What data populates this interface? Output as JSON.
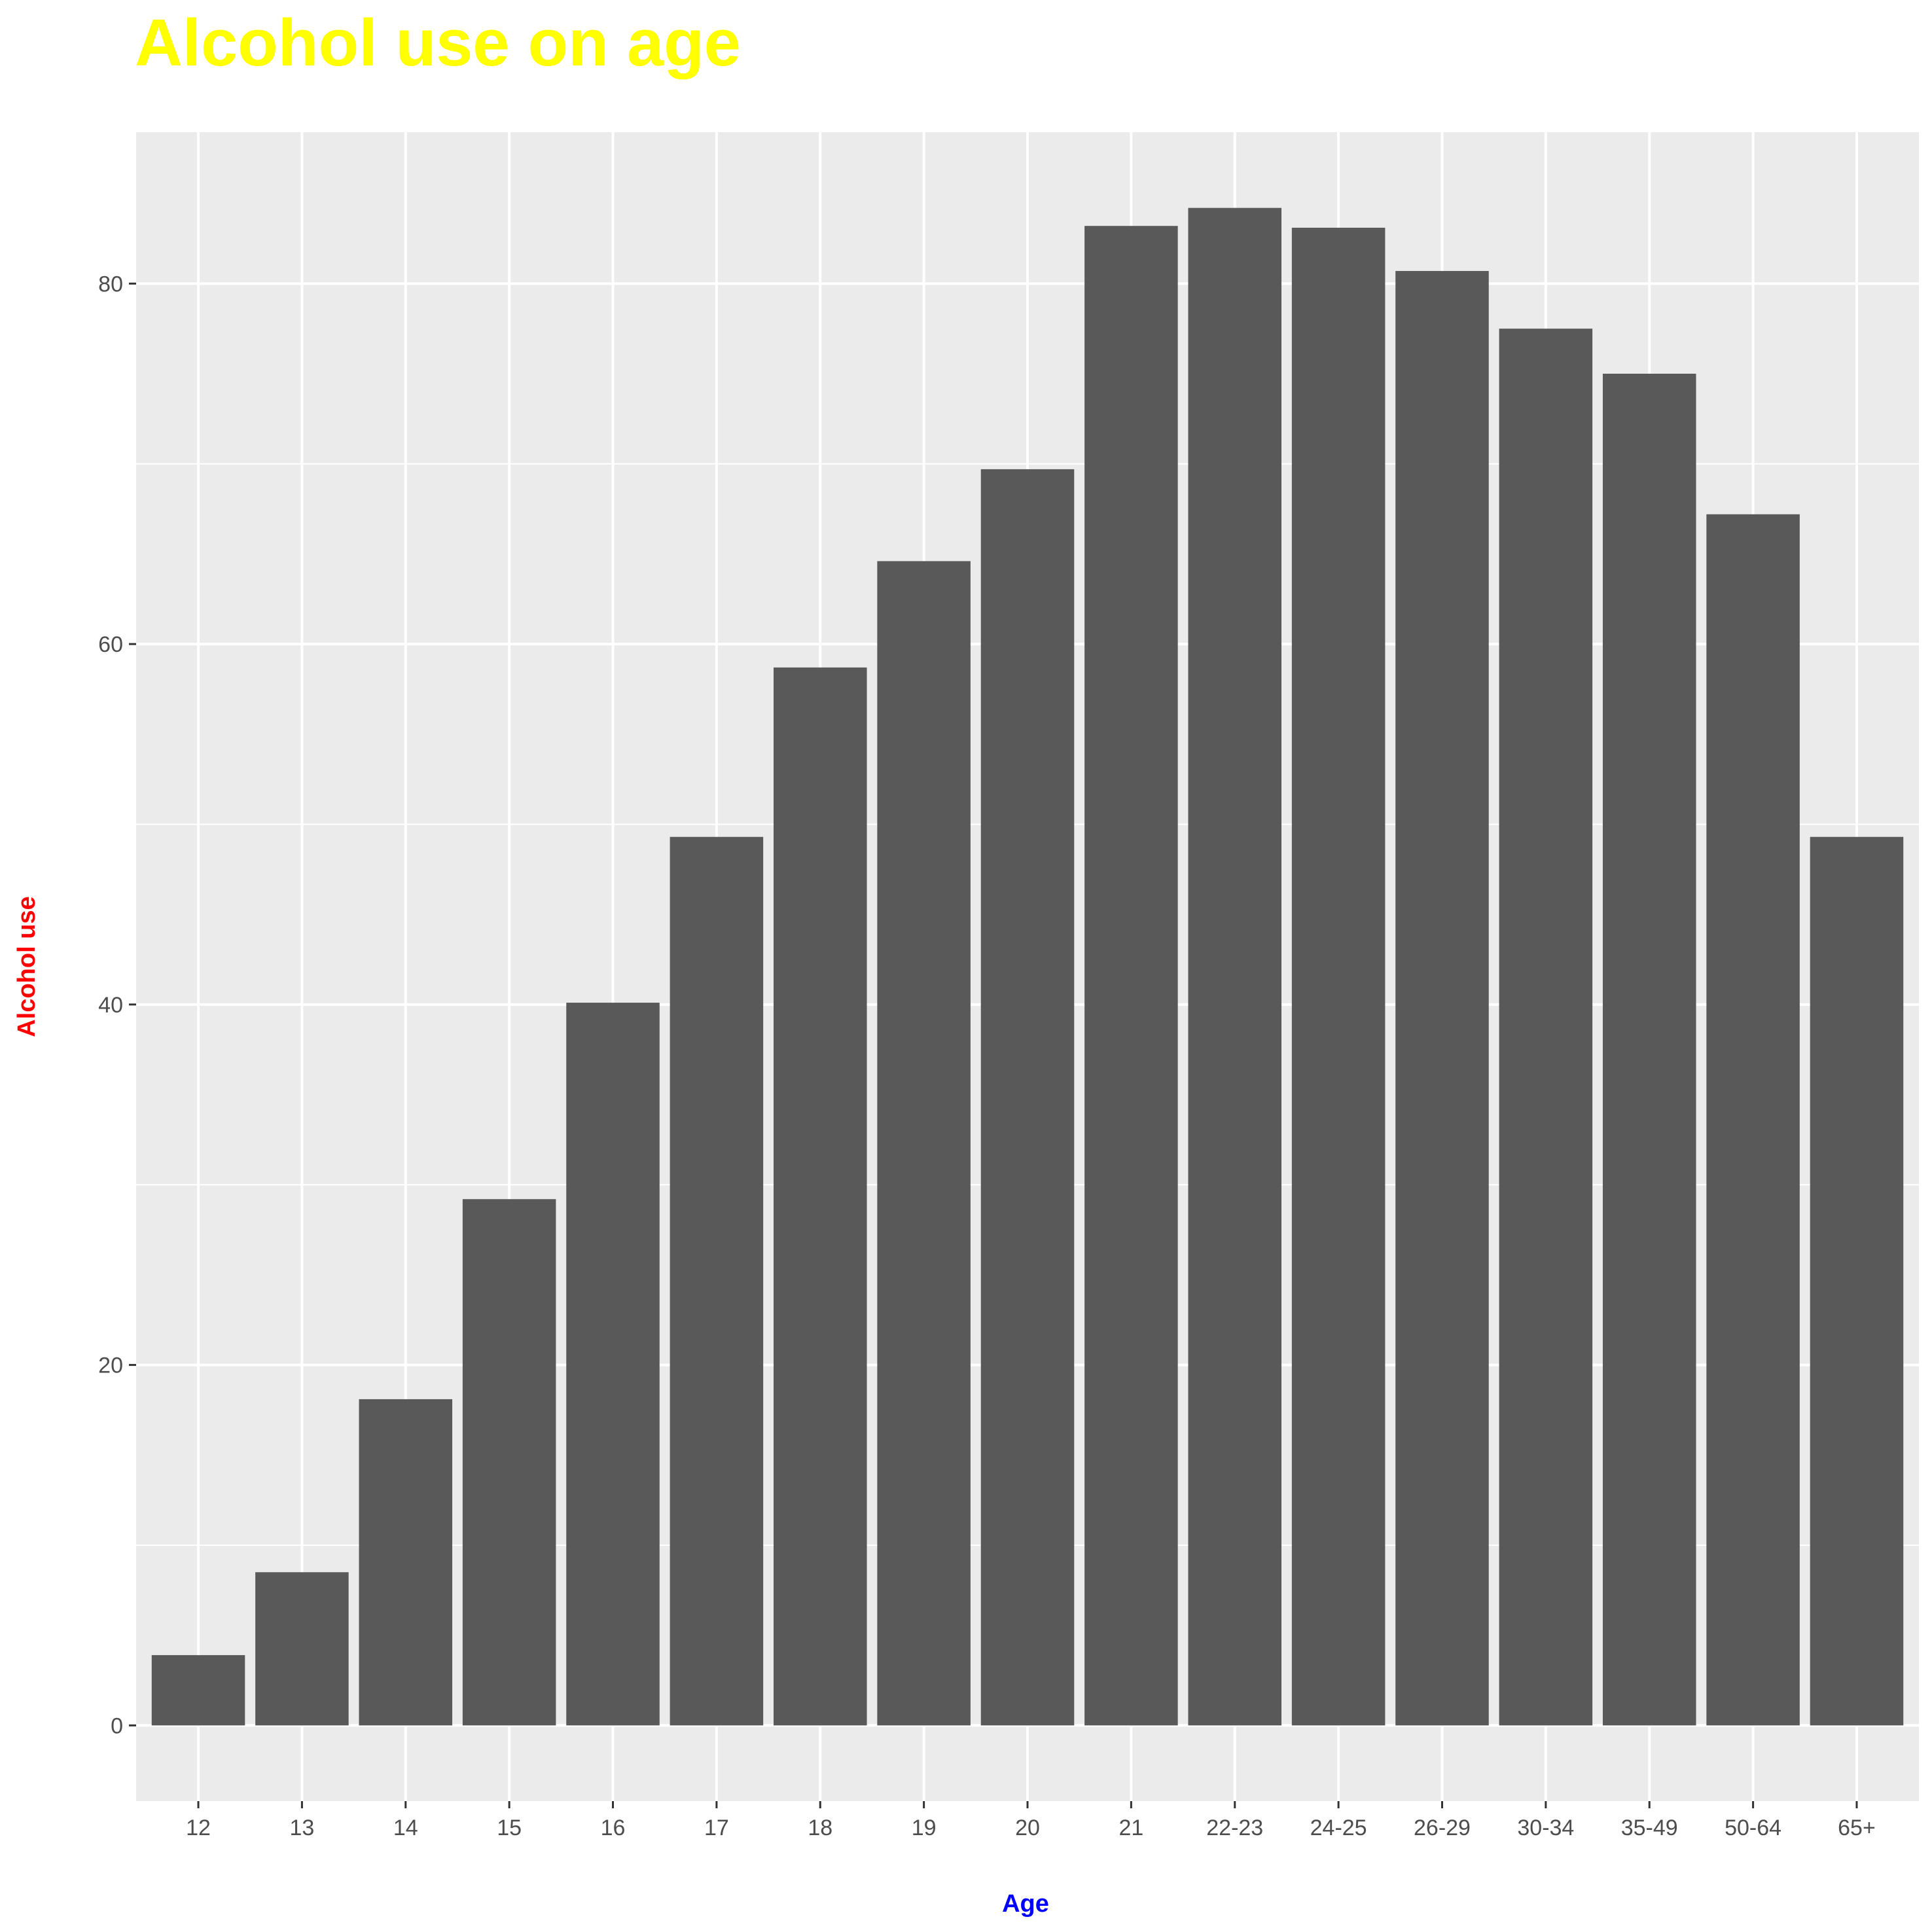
{
  "chart_data": {
    "type": "bar",
    "title": "Alcohol use on age",
    "xlabel": "Age",
    "ylabel": "Alcohol use",
    "categories": [
      "12",
      "13",
      "14",
      "15",
      "16",
      "17",
      "18",
      "19",
      "20",
      "21",
      "22-23",
      "24-25",
      "26-29",
      "30-34",
      "35-49",
      "50-64",
      "65+"
    ],
    "values": [
      3.9,
      8.5,
      18.1,
      29.2,
      40.1,
      49.3,
      58.7,
      64.6,
      69.7,
      83.2,
      84.2,
      83.1,
      80.7,
      77.5,
      75.0,
      67.2,
      49.3
    ],
    "ylim": [
      -4.2,
      88.4
    ],
    "y_ticks": [
      0,
      20,
      40,
      60,
      80
    ],
    "grid": true,
    "legend": "none",
    "colors": {
      "bar": "#595959",
      "panel": "#ebebeb",
      "grid": "#ffffff",
      "title": "#ffff00",
      "xlabel": "#0000ff",
      "ylabel": "#ff0000",
      "tick_text": "#4d4d4d",
      "tick_mark": "#333333"
    }
  }
}
